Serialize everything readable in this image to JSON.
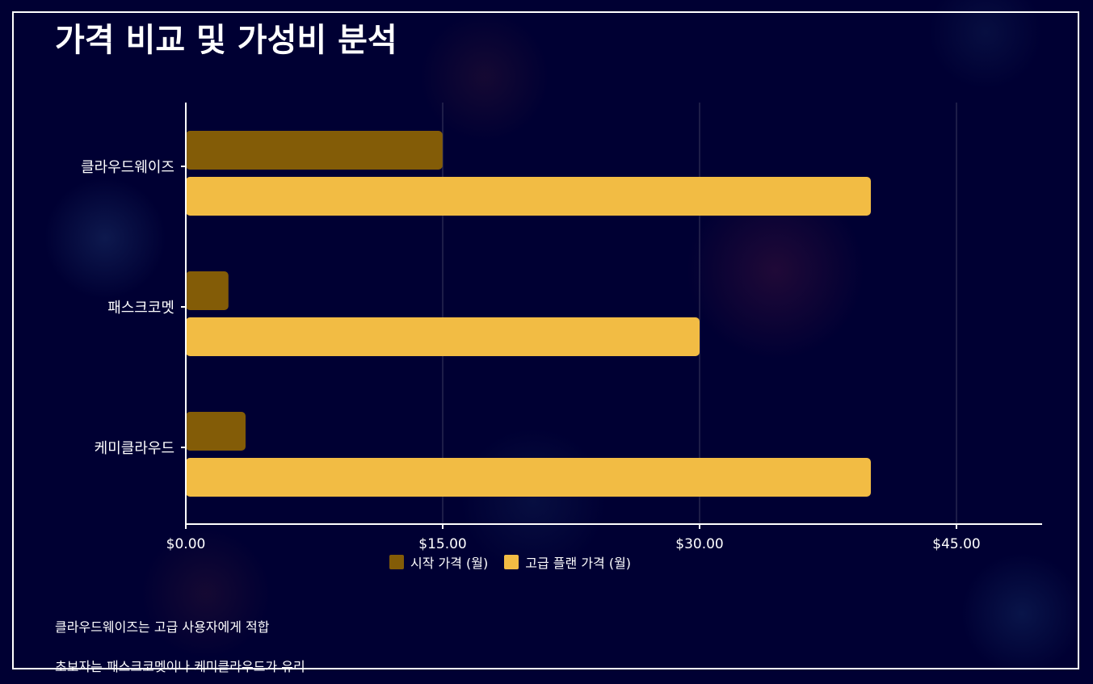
{
  "title": "가격 비교 및 가성비 분석",
  "chart_data": {
    "type": "bar",
    "orientation": "horizontal",
    "categories": [
      "클라우드웨이즈",
      "패스크코멧",
      "케미클라우드"
    ],
    "series": [
      {
        "name": "시작 가격 (월)",
        "color": "#835c07",
        "values": [
          14.99,
          2.49,
          3.49
        ]
      },
      {
        "name": "고급 플랜 가격 (월)",
        "color": "#f2bc44",
        "values": [
          40,
          30,
          40
        ]
      }
    ],
    "xlim": [
      0,
      50
    ],
    "xticks": [
      0,
      15,
      30,
      45
    ],
    "xtick_labels": [
      "$0.00",
      "$15.00",
      "$30.00",
      "$45.00"
    ],
    "grid": true,
    "legend_position": "bottom"
  },
  "notes": [
    "클라우드웨이즈는 고급 사용자에게 적합",
    "초보자는 패스크코멧이나 케미클라우드가 유리"
  ],
  "colors": {
    "background": "#000033",
    "text": "#ffffff",
    "grid": "#3a3a5c"
  }
}
